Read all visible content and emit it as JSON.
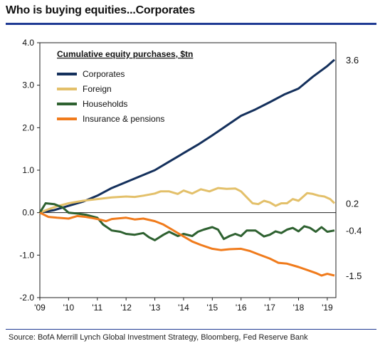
{
  "title": "Who is buying equities...Corporates",
  "source": "Source:  BofA Merrill Lynch Global Investment Strategy, Bloomberg, Fed Reserve Bank",
  "chart_data": {
    "type": "line",
    "inner_title": "Cumulative equity purchases, $tn",
    "xlim": [
      2009,
      2019.3
    ],
    "ylim": [
      -2.0,
      4.0
    ],
    "x_ticks": [
      2009,
      2010,
      2011,
      2012,
      2013,
      2014,
      2015,
      2016,
      2017,
      2018,
      2019
    ],
    "x_tick_labels": [
      "'09",
      "'10",
      "'11",
      "'12",
      "'13",
      "'14",
      "'15",
      "'16",
      "'17",
      "'18",
      "'19"
    ],
    "y_ticks": [
      4.0,
      3.0,
      2.0,
      1.0,
      0.0,
      -1.0,
      -2.0
    ],
    "y_tick_labels": [
      "4.0",
      "3.0",
      "2.0",
      "1.0",
      "0.0",
      "-1.0",
      "-2.0"
    ],
    "grid": false,
    "legend_position": "top-left",
    "series": [
      {
        "name": "Corporates",
        "color": "#14305c",
        "end_label": "3.6",
        "points": [
          [
            2009.0,
            0.0
          ],
          [
            2009.5,
            0.06
          ],
          [
            2010.0,
            0.16
          ],
          [
            2010.5,
            0.26
          ],
          [
            2011.0,
            0.4
          ],
          [
            2011.5,
            0.58
          ],
          [
            2012.0,
            0.72
          ],
          [
            2012.5,
            0.86
          ],
          [
            2013.0,
            1.0
          ],
          [
            2013.5,
            1.2
          ],
          [
            2014.0,
            1.4
          ],
          [
            2014.5,
            1.6
          ],
          [
            2015.0,
            1.82
          ],
          [
            2015.5,
            2.05
          ],
          [
            2016.0,
            2.28
          ],
          [
            2016.5,
            2.43
          ],
          [
            2017.0,
            2.6
          ],
          [
            2017.5,
            2.78
          ],
          [
            2018.0,
            2.92
          ],
          [
            2018.5,
            3.2
          ],
          [
            2019.0,
            3.45
          ],
          [
            2019.25,
            3.6
          ]
        ]
      },
      {
        "name": "Foreign",
        "color": "#e3c06a",
        "end_label": "0.2",
        "points": [
          [
            2009.0,
            0.0
          ],
          [
            2009.3,
            0.08
          ],
          [
            2009.6,
            0.15
          ],
          [
            2010.0,
            0.22
          ],
          [
            2010.5,
            0.28
          ],
          [
            2011.0,
            0.32
          ],
          [
            2011.5,
            0.36
          ],
          [
            2012.0,
            0.38
          ],
          [
            2012.3,
            0.37
          ],
          [
            2012.6,
            0.4
          ],
          [
            2013.0,
            0.45
          ],
          [
            2013.2,
            0.5
          ],
          [
            2013.5,
            0.5
          ],
          [
            2013.8,
            0.44
          ],
          [
            2014.0,
            0.52
          ],
          [
            2014.3,
            0.45
          ],
          [
            2014.6,
            0.55
          ],
          [
            2014.9,
            0.5
          ],
          [
            2015.2,
            0.58
          ],
          [
            2015.5,
            0.56
          ],
          [
            2015.8,
            0.57
          ],
          [
            2016.0,
            0.5
          ],
          [
            2016.2,
            0.36
          ],
          [
            2016.4,
            0.22
          ],
          [
            2016.6,
            0.2
          ],
          [
            2016.8,
            0.28
          ],
          [
            2017.0,
            0.24
          ],
          [
            2017.2,
            0.16
          ],
          [
            2017.4,
            0.22
          ],
          [
            2017.6,
            0.22
          ],
          [
            2017.8,
            0.32
          ],
          [
            2018.0,
            0.28
          ],
          [
            2018.3,
            0.46
          ],
          [
            2018.5,
            0.44
          ],
          [
            2018.7,
            0.4
          ],
          [
            2018.9,
            0.38
          ],
          [
            2019.1,
            0.32
          ],
          [
            2019.25,
            0.22
          ]
        ]
      },
      {
        "name": "Households",
        "color": "#2e6130",
        "end_label": "-0.4",
        "points": [
          [
            2009.0,
            0.0
          ],
          [
            2009.2,
            0.22
          ],
          [
            2009.5,
            0.2
          ],
          [
            2009.8,
            0.12
          ],
          [
            2010.0,
            0.0
          ],
          [
            2010.3,
            -0.02
          ],
          [
            2010.6,
            -0.05
          ],
          [
            2011.0,
            -0.12
          ],
          [
            2011.2,
            -0.28
          ],
          [
            2011.5,
            -0.42
          ],
          [
            2011.8,
            -0.45
          ],
          [
            2012.0,
            -0.5
          ],
          [
            2012.3,
            -0.52
          ],
          [
            2012.6,
            -0.48
          ],
          [
            2012.8,
            -0.58
          ],
          [
            2013.0,
            -0.65
          ],
          [
            2013.3,
            -0.52
          ],
          [
            2013.5,
            -0.45
          ],
          [
            2013.8,
            -0.55
          ],
          [
            2014.0,
            -0.5
          ],
          [
            2014.3,
            -0.55
          ],
          [
            2014.5,
            -0.45
          ],
          [
            2014.7,
            -0.4
          ],
          [
            2015.0,
            -0.34
          ],
          [
            2015.2,
            -0.4
          ],
          [
            2015.4,
            -0.62
          ],
          [
            2015.6,
            -0.55
          ],
          [
            2015.8,
            -0.5
          ],
          [
            2016.0,
            -0.55
          ],
          [
            2016.2,
            -0.42
          ],
          [
            2016.5,
            -0.42
          ],
          [
            2016.8,
            -0.56
          ],
          [
            2017.0,
            -0.52
          ],
          [
            2017.2,
            -0.44
          ],
          [
            2017.4,
            -0.48
          ],
          [
            2017.6,
            -0.4
          ],
          [
            2017.8,
            -0.36
          ],
          [
            2018.0,
            -0.44
          ],
          [
            2018.2,
            -0.32
          ],
          [
            2018.4,
            -0.36
          ],
          [
            2018.6,
            -0.45
          ],
          [
            2018.8,
            -0.34
          ],
          [
            2019.0,
            -0.45
          ],
          [
            2019.25,
            -0.42
          ]
        ]
      },
      {
        "name": "Insurance & pensions",
        "color": "#f07b1c",
        "end_label": "-1.5",
        "points": [
          [
            2009.0,
            0.0
          ],
          [
            2009.3,
            -0.1
          ],
          [
            2009.6,
            -0.12
          ],
          [
            2010.0,
            -0.14
          ],
          [
            2010.3,
            -0.08
          ],
          [
            2010.6,
            -0.1
          ],
          [
            2011.0,
            -0.15
          ],
          [
            2011.3,
            -0.2
          ],
          [
            2011.5,
            -0.15
          ],
          [
            2012.0,
            -0.12
          ],
          [
            2012.3,
            -0.16
          ],
          [
            2012.6,
            -0.14
          ],
          [
            2013.0,
            -0.2
          ],
          [
            2013.3,
            -0.28
          ],
          [
            2013.6,
            -0.4
          ],
          [
            2014.0,
            -0.56
          ],
          [
            2014.3,
            -0.68
          ],
          [
            2014.6,
            -0.76
          ],
          [
            2015.0,
            -0.85
          ],
          [
            2015.3,
            -0.88
          ],
          [
            2015.6,
            -0.86
          ],
          [
            2016.0,
            -0.85
          ],
          [
            2016.3,
            -0.9
          ],
          [
            2016.6,
            -0.98
          ],
          [
            2017.0,
            -1.08
          ],
          [
            2017.3,
            -1.18
          ],
          [
            2017.6,
            -1.2
          ],
          [
            2018.0,
            -1.28
          ],
          [
            2018.3,
            -1.35
          ],
          [
            2018.6,
            -1.42
          ],
          [
            2018.8,
            -1.48
          ],
          [
            2019.0,
            -1.44
          ],
          [
            2019.25,
            -1.48
          ]
        ]
      }
    ]
  }
}
